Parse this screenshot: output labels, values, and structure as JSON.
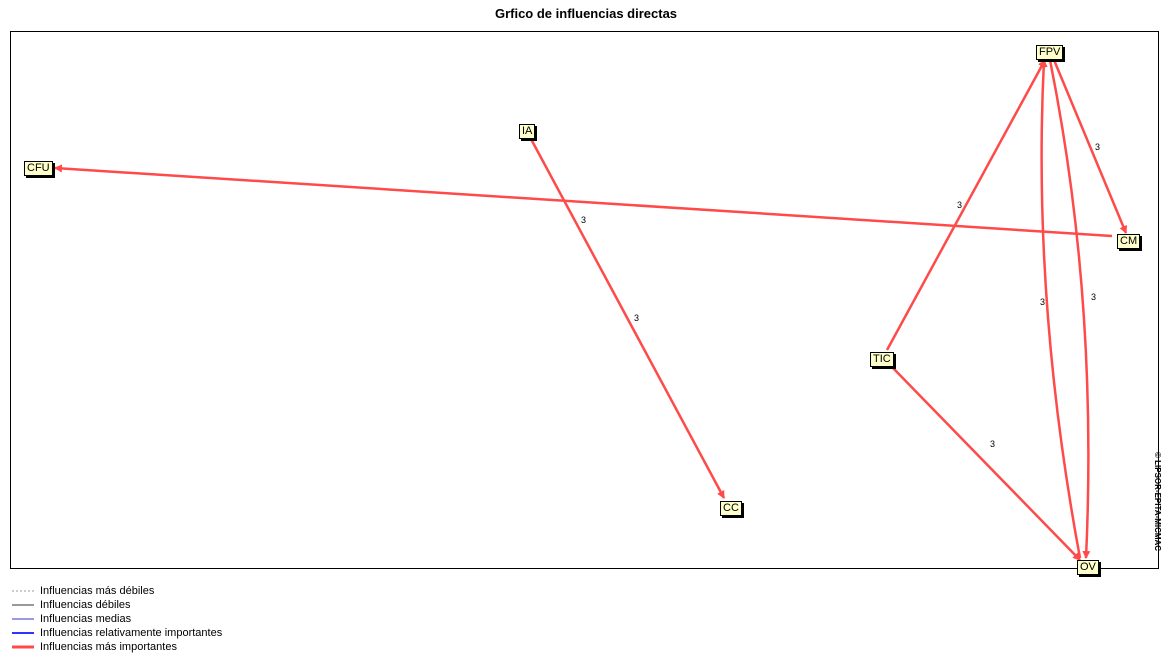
{
  "title": "Grfico de influencias directas",
  "copyright": "© LIPSOR-EPITA-MICMAC",
  "colors": {
    "edge": "#ff4a4a",
    "node_fill": "#ffffcc"
  },
  "nodes": [
    {
      "id": "FPV",
      "label": "FPV"
    },
    {
      "id": "IA",
      "label": "IA"
    },
    {
      "id": "CFU",
      "label": "CFU"
    },
    {
      "id": "CM",
      "label": "CM"
    },
    {
      "id": "TIC",
      "label": "TIC"
    },
    {
      "id": "CC",
      "label": "CC"
    },
    {
      "id": "OV",
      "label": "OV"
    }
  ],
  "edges": [
    {
      "from": "CM",
      "to": "CFU",
      "weight": "3"
    },
    {
      "from": "IA",
      "to": "CC",
      "weight": "3"
    },
    {
      "from": "TIC",
      "to": "FPV",
      "weight": "3"
    },
    {
      "from": "FPV",
      "to": "CM",
      "weight": "3"
    },
    {
      "from": "OV",
      "to": "FPV",
      "weight": "3"
    },
    {
      "from": "FPV",
      "to": "OV",
      "weight": "3"
    },
    {
      "from": "TIC",
      "to": "OV",
      "weight": "3"
    }
  ],
  "legend": [
    {
      "label": "Influencias más débiles",
      "color": "#999999",
      "style": "dotted"
    },
    {
      "label": "Influencias débiles",
      "color": "#333333",
      "style": "thin"
    },
    {
      "label": "Influencias medias",
      "color": "#3333cc",
      "style": "thin"
    },
    {
      "label": "Influencias relativamente importantes",
      "color": "#3333ff",
      "style": "medium"
    },
    {
      "label": "Influencias más importantes",
      "color": "#ff4a4a",
      "style": "thick"
    }
  ]
}
